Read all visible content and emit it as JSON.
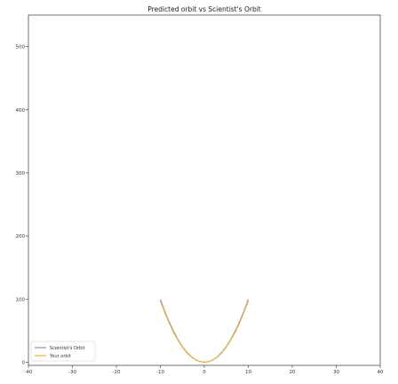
{
  "chart_data": {
    "type": "line",
    "title": "Predicted orbit vs Scientist's Orbit",
    "xlabel": "",
    "ylabel": "",
    "xlim": [
      -40,
      40
    ],
    "ylim": [
      -5,
      550
    ],
    "xticks": [
      -40,
      -30,
      -20,
      -10,
      0,
      10,
      20,
      30,
      40
    ],
    "yticks": [
      0,
      100,
      200,
      300,
      400,
      500
    ],
    "grid": false,
    "legend": "lower-left",
    "series": [
      {
        "name": "Scientist's Orbit",
        "color": "#8c8ccc",
        "x": [
          -10,
          -9,
          -8,
          -7,
          -6,
          -5,
          -4,
          -3,
          -2,
          -1,
          0,
          1,
          2,
          3,
          4,
          5,
          6,
          7,
          8,
          9,
          10
        ],
        "y": [
          100,
          81,
          64,
          49,
          36,
          25,
          16,
          9,
          4,
          1,
          0,
          1,
          4,
          9,
          16,
          25,
          36,
          49,
          64,
          81,
          100
        ]
      },
      {
        "name": "Your orbit",
        "color": "#f0b030",
        "x": [
          -10,
          -9,
          -8,
          -7,
          -6,
          -5,
          -4,
          -3,
          -2,
          -1,
          0,
          1,
          2,
          3,
          4,
          5,
          6,
          7,
          8,
          9,
          10
        ],
        "y": [
          97,
          79,
          62,
          47,
          35,
          24,
          15,
          8.5,
          3.8,
          1,
          0,
          1,
          3.8,
          8.5,
          15,
          24,
          35,
          47,
          62,
          79,
          97
        ]
      }
    ]
  }
}
